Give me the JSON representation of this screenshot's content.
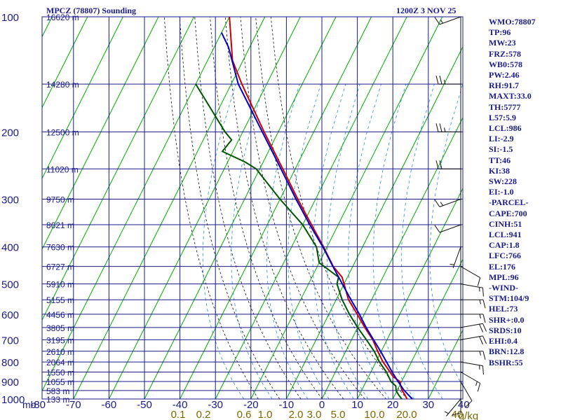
{
  "title": {
    "station": "MPCZ (78807) Sounding",
    "datetime": "1200Z  3 NOV 25"
  },
  "colors": {
    "frame": "#1a1a8c",
    "grid": "#00aa00",
    "temperature": "#cc0000",
    "dewpoint": "#005500",
    "parcel": "#0000cc",
    "mixing_ratio": "#2a8ae8",
    "moist_adiabat": "#111111",
    "axis_text": "#1a1a8c",
    "mixing_text": "#7a6a00",
    "wind_barb": "#111111"
  },
  "chart_data": {
    "type": "line",
    "title": "MPCZ (78807) Sounding",
    "subtitle": "1200Z  3 NOV 25",
    "y_axis_label": "mb",
    "ylim": [
      100,
      1000
    ],
    "xlim": [
      -80,
      40
    ],
    "x_ticks": [
      -80,
      -70,
      -60,
      -50,
      -40,
      -30,
      -20,
      -10,
      0,
      10,
      20,
      30,
      40
    ],
    "x_tick_labels": [
      "-80",
      "-70",
      "-60",
      "-50",
      "-40",
      "-30",
      "-20",
      "-10",
      "0",
      "10",
      "20",
      "30",
      "40"
    ],
    "pressure_ticks": [
      100,
      200,
      300,
      400,
      500,
      600,
      700,
      800,
      900,
      1000
    ],
    "pressure_tick_labels": [
      "100",
      "200",
      "300",
      "400",
      "500",
      "600",
      "700",
      "800",
      "900",
      "1000"
    ],
    "height_levels": [
      {
        "p": 100,
        "label": "16620 m"
      },
      {
        "p": 150,
        "label": "14280 m"
      },
      {
        "p": 200,
        "label": "12500 m"
      },
      {
        "p": 250,
        "label": "11020 m"
      },
      {
        "p": 300,
        "label": "9750 m"
      },
      {
        "p": 350,
        "label": "8621 m"
      },
      {
        "p": 400,
        "label": "7630 m"
      },
      {
        "p": 450,
        "label": "6727 m"
      },
      {
        "p": 500,
        "label": "5910 m"
      },
      {
        "p": 550,
        "label": "5155 m"
      },
      {
        "p": 600,
        "label": "4456 m"
      },
      {
        "p": 650,
        "label": "3805 m"
      },
      {
        "p": 700,
        "label": "3195 m"
      },
      {
        "p": 750,
        "label": "2610 m"
      },
      {
        "p": 800,
        "label": "2064 m"
      },
      {
        "p": 850,
        "label": "1550 m"
      },
      {
        "p": 900,
        "label": "1055 m"
      },
      {
        "p": 950,
        "label": "583 m"
      },
      {
        "p": 1000,
        "label": "133 m"
      }
    ],
    "mixing_ratio_labels": [
      "0.1",
      "0.2",
      "0.6",
      "1.0",
      "2.0",
      "3.0",
      "5.0",
      "10.0",
      "20.0",
      "40"
    ],
    "mixing_ratio_unit": "g/kg",
    "series": [
      {
        "name": "Temperature",
        "points": [
          [
            1012,
            24.0
          ],
          [
            1000,
            24.0
          ],
          [
            975,
            22.8
          ],
          [
            950,
            21.4
          ],
          [
            925,
            20.4
          ],
          [
            900,
            19.5
          ],
          [
            875,
            17.0
          ],
          [
            850,
            15.4
          ],
          [
            800,
            12.0
          ],
          [
            750,
            9.0
          ],
          [
            700,
            6.0
          ],
          [
            650,
            2.0
          ],
          [
            600,
            -2.0
          ],
          [
            550,
            -6.5
          ],
          [
            500,
            -10.0
          ],
          [
            480,
            -11.5
          ],
          [
            450,
            -15.5
          ],
          [
            400,
            -21.0
          ],
          [
            350,
            -27.5
          ],
          [
            300,
            -35.0
          ],
          [
            250,
            -43.5
          ],
          [
            200,
            -54.0
          ],
          [
            150,
            -67.0
          ],
          [
            130,
            -73.0
          ],
          [
            100,
            -80.0
          ]
        ]
      },
      {
        "name": "Dewpoint",
        "points": [
          [
            1012,
            23.0
          ],
          [
            1000,
            22.5
          ],
          [
            975,
            21.0
          ],
          [
            950,
            19.7
          ],
          [
            925,
            19.0
          ],
          [
            900,
            17.0
          ],
          [
            850,
            14.4
          ],
          [
            800,
            11.0
          ],
          [
            750,
            8.0
          ],
          [
            700,
            4.2
          ],
          [
            650,
            0.0
          ],
          [
            600,
            -4.2
          ],
          [
            550,
            -8.3
          ],
          [
            500,
            -12.0
          ],
          [
            480,
            -12.5
          ],
          [
            440,
            -20.0
          ],
          [
            400,
            -23.0
          ],
          [
            350,
            -30.0
          ],
          [
            300,
            -40.0
          ],
          [
            250,
            -51.0
          ],
          [
            240,
            -55.0
          ],
          [
            225,
            -63.0
          ],
          [
            210,
            -62.0
          ],
          [
            200,
            -65.0
          ],
          [
            150,
            -80.0
          ]
        ]
      },
      {
        "name": "Parcel",
        "points": [
          [
            1000,
            25.5
          ],
          [
            950,
            22.0
          ],
          [
            900,
            19.0
          ],
          [
            850,
            16.0
          ],
          [
            800,
            13.0
          ],
          [
            750,
            9.8
          ],
          [
            700,
            6.2
          ],
          [
            650,
            2.4
          ],
          [
            600,
            -1.4
          ],
          [
            550,
            -5.8
          ],
          [
            500,
            -10.5
          ],
          [
            450,
            -15.6
          ],
          [
            400,
            -21.2
          ],
          [
            350,
            -28.0
          ],
          [
            300,
            -35.5
          ],
          [
            250,
            -44.0
          ],
          [
            200,
            -54.5
          ],
          [
            150,
            -68.0
          ],
          [
            120,
            -76.0
          ],
          [
            110,
            -80.0
          ]
        ]
      }
    ]
  },
  "indices": [
    "WMO:78807",
    "TP:96",
    "MW:23",
    "FRZ:578",
    "WB0:578",
    "PW:2.46",
    "RH:91.7",
    "MAXT:33.0",
    "TH:5777",
    "L57:5.9",
    "LCL:986",
    "LI:-2.9",
    "SI:-1.5",
    "TT:46",
    "KI:38",
    "SW:228",
    "EI:-1.0",
    "-PARCEL-",
    "CAPE:700",
    "CINH:51",
    "LCL:941",
    "CAP:1.8",
    "LFC:766",
    "EL:176",
    "MPL:96",
    "-WIND-",
    "STM:104/9",
    "HEL:73",
    "SHR+:0.0",
    "SRDS:10",
    "EHI:0.4",
    "BRN:12.8",
    "BSHR:55"
  ],
  "wind_barbs": [
    {
      "p": 1000,
      "dir": 220,
      "spd": 5
    },
    {
      "p": 950,
      "dir": 180,
      "spd": 10
    },
    {
      "p": 900,
      "dir": 150,
      "spd": 10
    },
    {
      "p": 850,
      "dir": 120,
      "spd": 15
    },
    {
      "p": 800,
      "dir": 100,
      "spd": 15
    },
    {
      "p": 750,
      "dir": 90,
      "spd": 15
    },
    {
      "p": 700,
      "dir": 80,
      "spd": 20
    },
    {
      "p": 650,
      "dir": 80,
      "spd": 20
    },
    {
      "p": 600,
      "dir": 90,
      "spd": 15
    },
    {
      "p": 550,
      "dir": 90,
      "spd": 15
    },
    {
      "p": 500,
      "dir": 100,
      "spd": 15
    },
    {
      "p": 450,
      "dir": 120,
      "spd": 10
    },
    {
      "p": 400,
      "dir": 200,
      "spd": 5
    },
    {
      "p": 350,
      "dir": 250,
      "spd": 10
    },
    {
      "p": 300,
      "dir": 250,
      "spd": 15
    },
    {
      "p": 250,
      "dir": 270,
      "spd": 20
    },
    {
      "p": 200,
      "dir": 270,
      "spd": 25
    },
    {
      "p": 150,
      "dir": 270,
      "spd": 25
    },
    {
      "p": 100,
      "dir": 250,
      "spd": 15
    }
  ]
}
